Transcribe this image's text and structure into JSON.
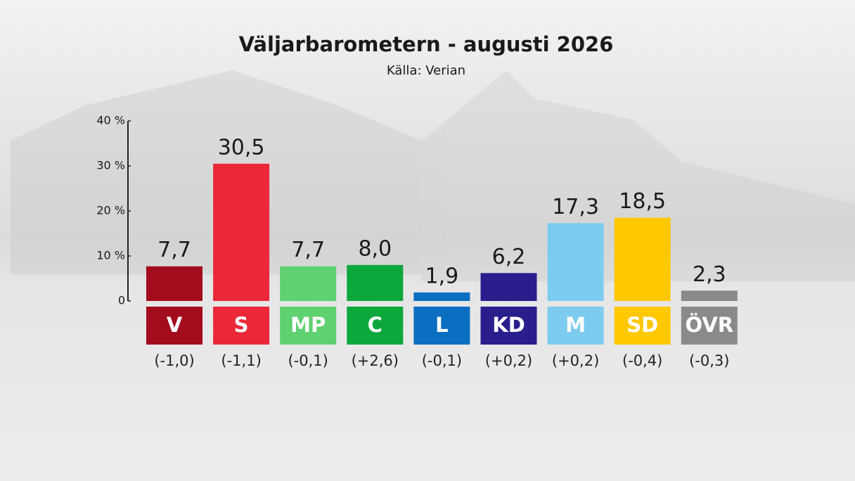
{
  "chart_data": {
    "type": "bar",
    "title": "Väljarbarometern - augusti 2026",
    "subtitle": "Källa: Verian",
    "categories": [
      "V",
      "S",
      "MP",
      "C",
      "L",
      "KD",
      "M",
      "SD",
      "ÖVR"
    ],
    "values": [
      7.7,
      30.5,
      7.7,
      8.0,
      1.9,
      6.2,
      17.3,
      18.5,
      2.3
    ],
    "value_labels": [
      "7,7",
      "30,5",
      "7,7",
      "8,0",
      "1,9",
      "6,2",
      "17,3",
      "18,5",
      "2,3"
    ],
    "change_labels": [
      "(-1,0)",
      "(-1,1)",
      "(-0,1)",
      "(+2,6)",
      "(-0,1)",
      "(+0,2)",
      "(+0,2)",
      "(-0,4)",
      "(-0,3)"
    ],
    "colors": [
      "#a30c1d",
      "#ea2839",
      "#5fd170",
      "#0da83c",
      "#0b6ec0",
      "#2a1e8c",
      "#7ecbf0",
      "#ffc800",
      "#8a8a8a"
    ],
    "ylim": [
      0,
      40
    ],
    "yticks": [
      0,
      {
        "value": 10,
        "label": "10 %"
      },
      {
        "value": 20,
        "label": "20 %"
      },
      {
        "value": 30,
        "label": "30 %"
      },
      {
        "value": 40,
        "label": "40 %"
      }
    ]
  }
}
